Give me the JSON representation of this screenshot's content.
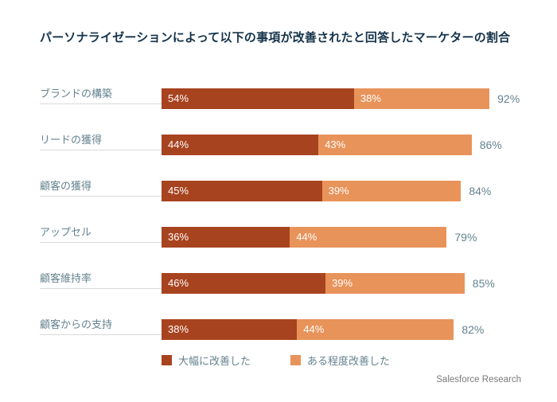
{
  "chart_data": {
    "type": "bar",
    "orientation": "horizontal-stacked",
    "title": "パーソナライゼーションによって以下の事項が改善されたと回答したマーケターの割合",
    "categories": [
      "ブランドの構築",
      "リードの獲得",
      "顧客の獲得",
      "アップセル",
      "顧客維持率",
      "顧客からの支持"
    ],
    "series": [
      {
        "name": "大幅に改善した",
        "color": "#A8431F",
        "values": [
          54,
          44,
          45,
          36,
          46,
          38
        ],
        "labels": [
          "54%",
          "44%",
          "45%",
          "36%",
          "46%",
          "38%"
        ]
      },
      {
        "name": "ある程度改善した",
        "color": "#E8935A",
        "values": [
          38,
          43,
          39,
          44,
          39,
          44
        ],
        "labels": [
          "38%",
          "43%",
          "39%",
          "44%",
          "39%",
          "44%"
        ]
      }
    ],
    "totals": [
      92,
      86,
      84,
      79,
      85,
      82
    ],
    "total_labels": [
      "92%",
      "86%",
      "84%",
      "79%",
      "85%",
      "82%"
    ],
    "xlim": [
      0,
      100
    ],
    "grid": false,
    "legend_position": "bottom"
  },
  "legend": {
    "items": [
      {
        "label": "大幅に改善した",
        "color": "#A8431F"
      },
      {
        "label": "ある程度改善した",
        "color": "#E8935A"
      }
    ]
  },
  "footer": {
    "source": "Salesforce Research"
  },
  "colors": {
    "background": "#FFFFFF",
    "title": "#14324A",
    "category_label": "#64828F",
    "total_label": "#64828F",
    "bar_label": "#FFFFFF",
    "underline": "#D9D9D9",
    "footer": "#7A7A7A"
  }
}
